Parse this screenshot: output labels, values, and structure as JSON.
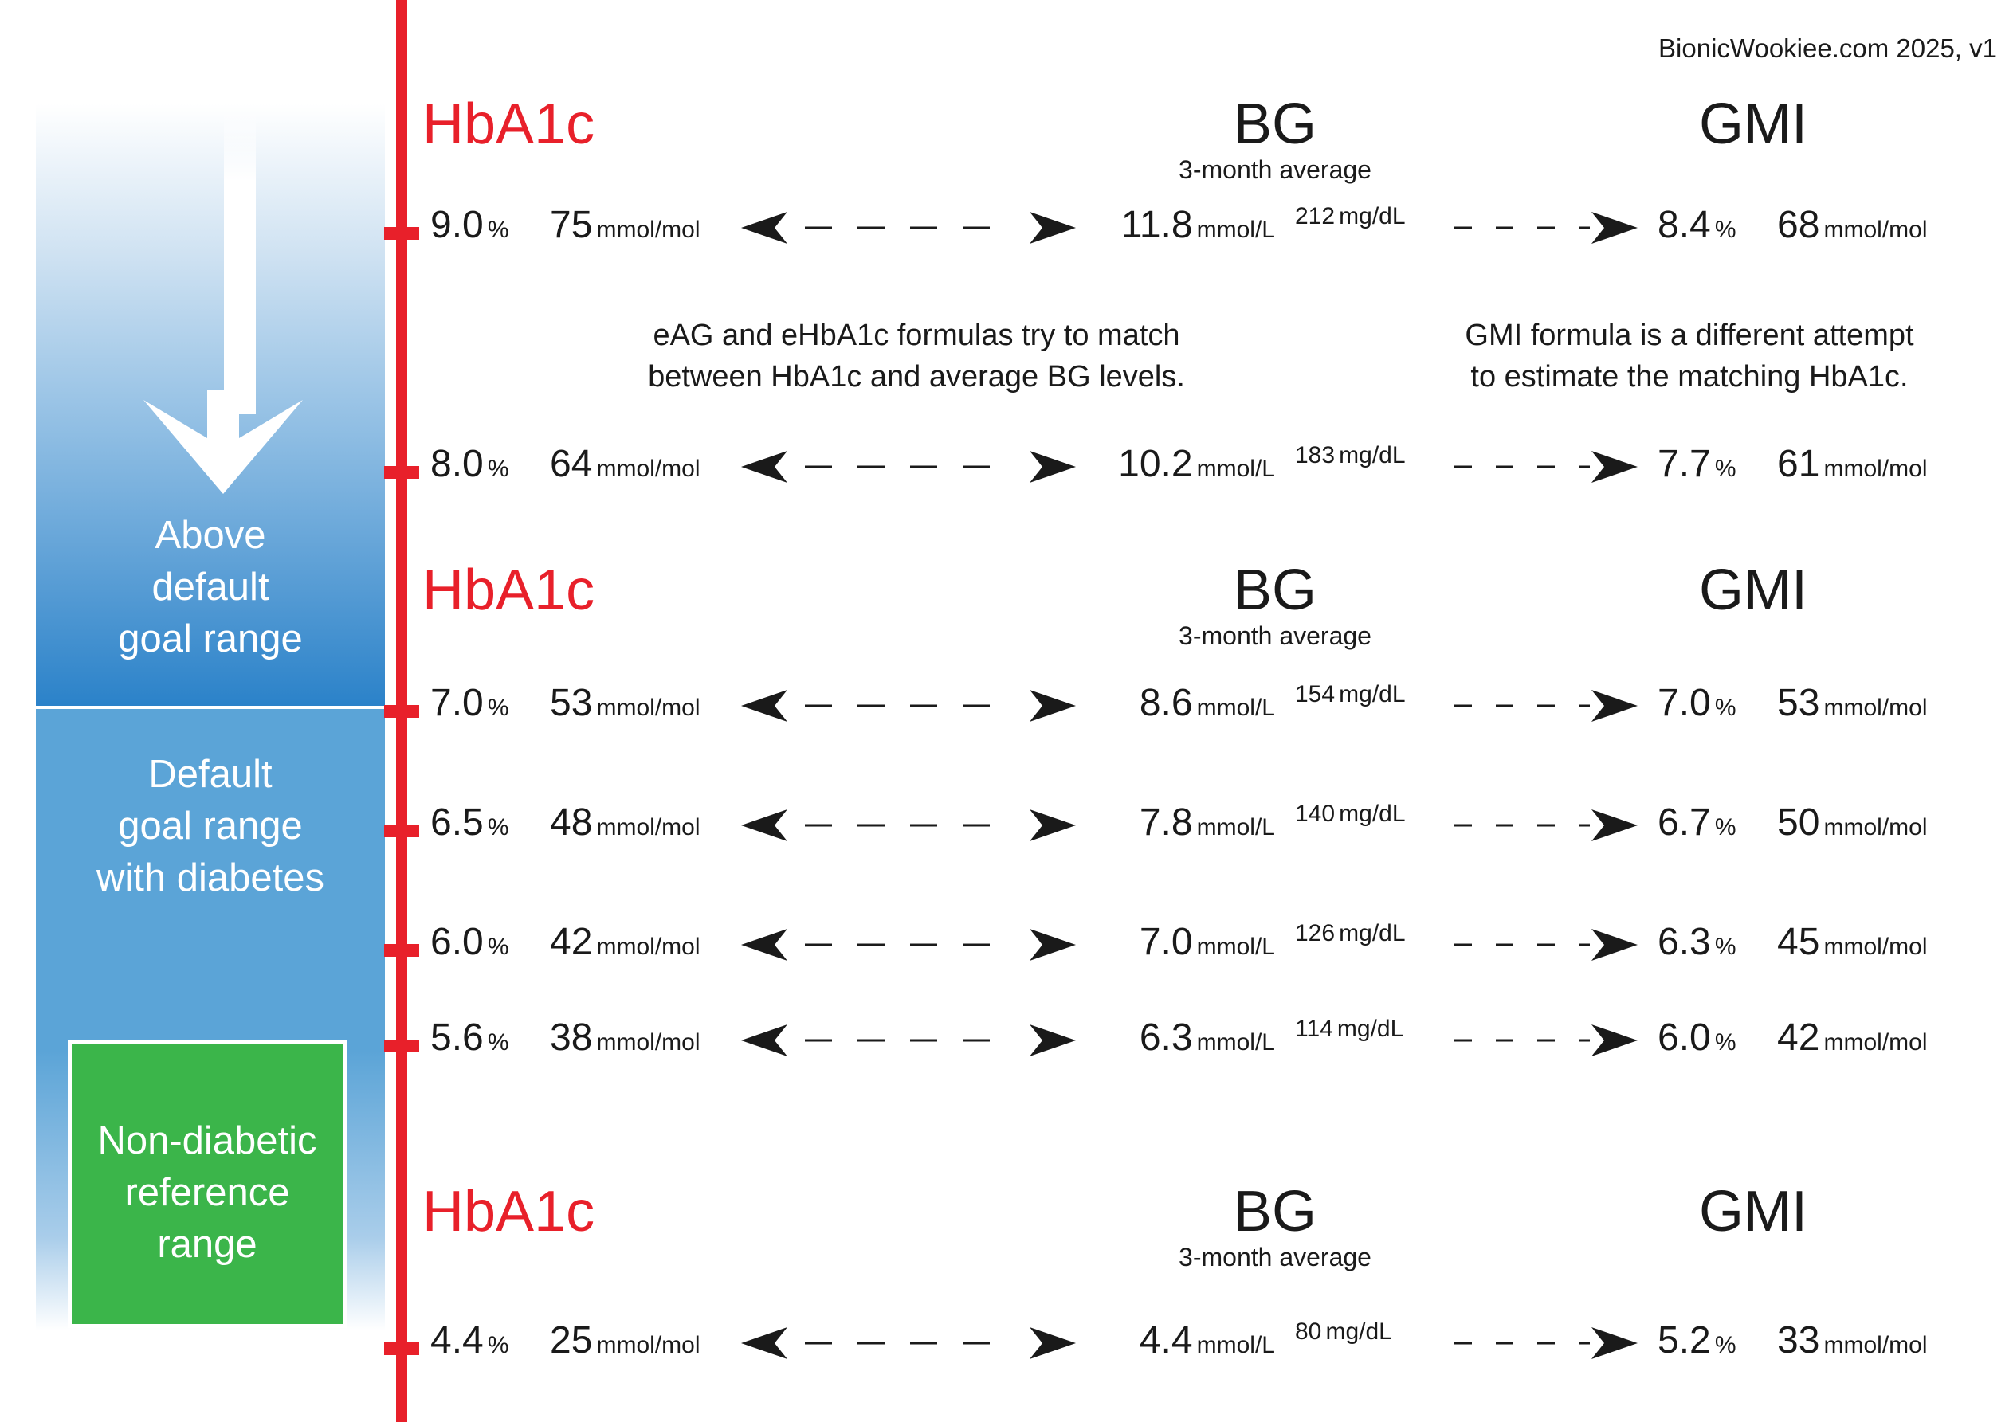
{
  "credit": "BionicWookiee.com 2025, v1",
  "headers": {
    "hba1c": "HbA1c",
    "bg": "BG",
    "bg_sub": "3-month average",
    "gmi": "GMI"
  },
  "zones": {
    "above": "Above\ndefault\ngoal range",
    "default": "Default\ngoal range\nwith diabetes",
    "nondiabetic": "Non-diabetic\nreference\nrange"
  },
  "notes": {
    "eag": "eAG and eHbA1c formulas try to match\nbetween HbA1c and average BG levels.",
    "gmi": "GMI formula is a different attempt\nto estimate the matching HbA1c."
  },
  "units": {
    "pct": "%",
    "mmolmol": "mmol/mol",
    "mmoll": "mmol/L",
    "mgdl": "mg/dL"
  },
  "rows": [
    {
      "hba1c_pct": "9.0",
      "hba1c_mmol": "75",
      "bg_mmol": "11.8",
      "bg_mg": "212",
      "gmi_pct": "8.4",
      "gmi_mmol": "68"
    },
    {
      "hba1c_pct": "8.0",
      "hba1c_mmol": "64",
      "bg_mmol": "10.2",
      "bg_mg": "183",
      "gmi_pct": "7.7",
      "gmi_mmol": "61"
    },
    {
      "hba1c_pct": "7.0",
      "hba1c_mmol": "53",
      "bg_mmol": "8.6",
      "bg_mg": "154",
      "gmi_pct": "7.0",
      "gmi_mmol": "53"
    },
    {
      "hba1c_pct": "6.5",
      "hba1c_mmol": "48",
      "bg_mmol": "7.8",
      "bg_mg": "140",
      "gmi_pct": "6.7",
      "gmi_mmol": "50"
    },
    {
      "hba1c_pct": "6.0",
      "hba1c_mmol": "42",
      "bg_mmol": "7.0",
      "bg_mg": "126",
      "gmi_pct": "6.3",
      "gmi_mmol": "45"
    },
    {
      "hba1c_pct": "5.6",
      "hba1c_mmol": "38",
      "bg_mmol": "6.3",
      "bg_mg": "114",
      "gmi_pct": "6.0",
      "gmi_mmol": "42"
    },
    {
      "hba1c_pct": "4.4",
      "hba1c_mmol": "25",
      "bg_mmol": "4.4",
      "bg_mg": "80",
      "gmi_pct": "5.2",
      "gmi_mmol": "33"
    }
  ]
}
